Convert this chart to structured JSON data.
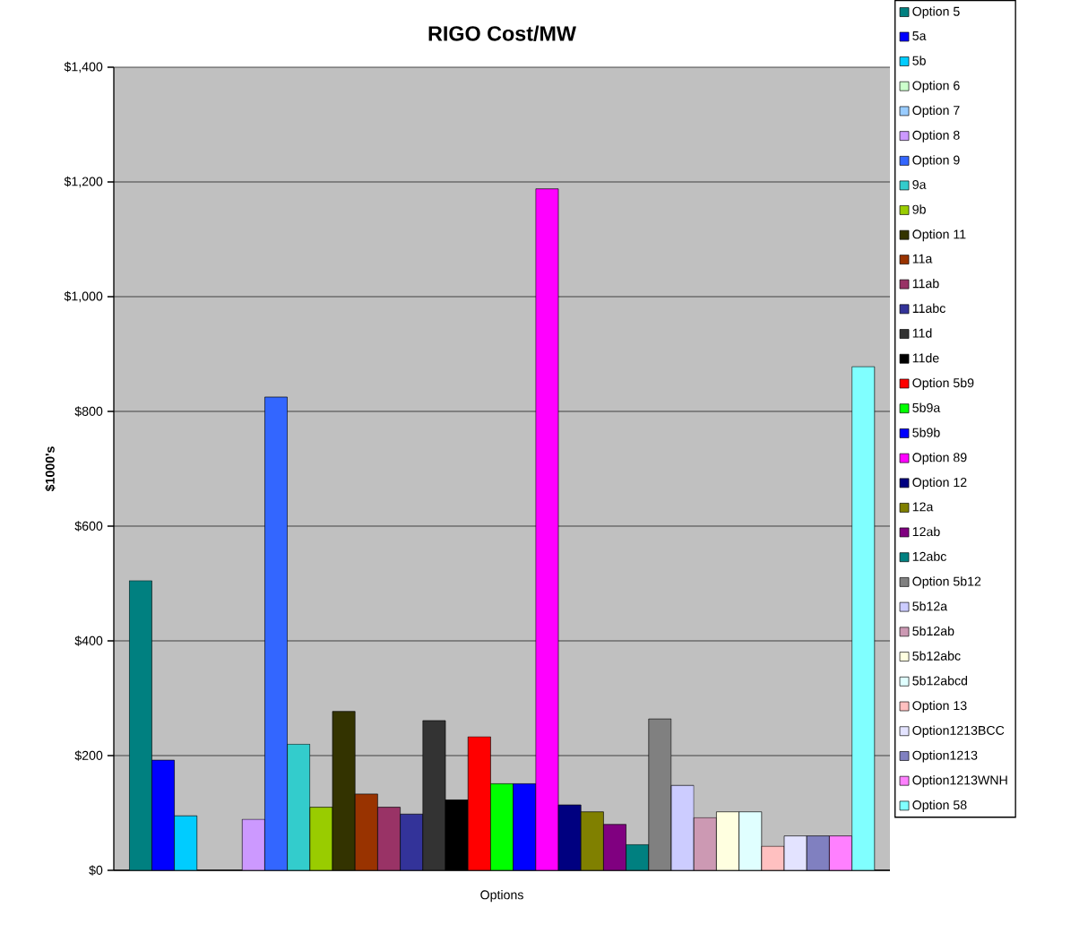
{
  "chart_data": {
    "type": "bar",
    "title": "RIGO Cost/MW",
    "xlabel": "Options",
    "ylabel": "$1000's",
    "categories": [
      null
    ],
    "ylim": [
      0,
      1400
    ],
    "yticks": [
      {
        "value": 0,
        "label": "$0"
      },
      {
        "value": 200,
        "label": "$200"
      },
      {
        "value": 400,
        "label": "$400"
      },
      {
        "value": 600,
        "label": "$600"
      },
      {
        "value": 800,
        "label": "$800"
      },
      {
        "value": 1000,
        "label": "$1,000"
      },
      {
        "value": 1200,
        "label": "$1,200"
      },
      {
        "value": 1400,
        "label": "$1,400"
      }
    ],
    "grid": "y",
    "legend": "right",
    "series": [
      {
        "name": "Option 5",
        "color": "#008080",
        "values": [
          505
        ]
      },
      {
        "name": "5a",
        "color": "#0000ff",
        "values": [
          192
        ]
      },
      {
        "name": "5b",
        "color": "#00ccff",
        "values": [
          95
        ]
      },
      {
        "name": "Option 6",
        "color": "#ccffcc",
        "values": [
          null
        ]
      },
      {
        "name": "Option 7",
        "color": "#99ccff",
        "values": [
          null
        ]
      },
      {
        "name": "Option 8",
        "color": "#cc99ff",
        "values": [
          89
        ]
      },
      {
        "name": "Option 9",
        "color": "#3366ff",
        "values": [
          825
        ]
      },
      {
        "name": "9a",
        "color": "#33cccc",
        "values": [
          220
        ]
      },
      {
        "name": "9b",
        "color": "#99cc00",
        "values": [
          110
        ]
      },
      {
        "name": "Option 11",
        "color": "#333300",
        "values": [
          277
        ]
      },
      {
        "name": "11a",
        "color": "#993300",
        "values": [
          133
        ]
      },
      {
        "name": "11ab",
        "color": "#993366",
        "values": [
          110
        ]
      },
      {
        "name": "11abc",
        "color": "#333399",
        "values": [
          98
        ]
      },
      {
        "name": "11d",
        "color": "#333333",
        "values": [
          261
        ]
      },
      {
        "name": "11de",
        "color": "#000000",
        "values": [
          123
        ]
      },
      {
        "name": "Option 5b9",
        "color": "#ff0000",
        "values": [
          233
        ]
      },
      {
        "name": "5b9a",
        "color": "#00ff00",
        "values": [
          151
        ]
      },
      {
        "name": "5b9b",
        "color": "#0000ff",
        "values": [
          151
        ]
      },
      {
        "name": "Option 89",
        "color": "#ff00ff",
        "values": [
          1188
        ]
      },
      {
        "name": "Option 12",
        "color": "#000080",
        "values": [
          114
        ]
      },
      {
        "name": "12a",
        "color": "#808000",
        "values": [
          102
        ]
      },
      {
        "name": "12ab",
        "color": "#800080",
        "values": [
          80
        ]
      },
      {
        "name": "12abc",
        "color": "#008080",
        "values": [
          45
        ]
      },
      {
        "name": "Option 5b12",
        "color": "#808080",
        "values": [
          264
        ]
      },
      {
        "name": "5b12a",
        "color": "#ccccff",
        "values": [
          148
        ]
      },
      {
        "name": "5b12ab",
        "color": "#cc99b3",
        "values": [
          92
        ]
      },
      {
        "name": "5b12abc",
        "color": "#ffffe0",
        "values": [
          102
        ]
      },
      {
        "name": "5b12abcd",
        "color": "#e0ffff",
        "values": [
          102
        ]
      },
      {
        "name": "Option 13",
        "color": "#ffc0c0",
        "values": [
          42
        ]
      },
      {
        "name": "Option1213BCC",
        "color": "#e3e3ff",
        "values": [
          60
        ]
      },
      {
        "name": "Option1213",
        "color": "#8080c0",
        "values": [
          60
        ]
      },
      {
        "name": "Option1213WNH",
        "color": "#ff80ff",
        "values": [
          60
        ]
      },
      {
        "name": "Option 58",
        "color": "#80ffff",
        "values": [
          878
        ]
      }
    ]
  }
}
